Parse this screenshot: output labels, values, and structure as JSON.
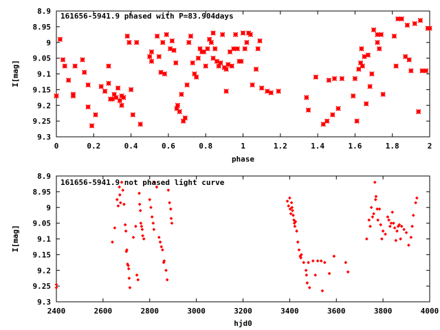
{
  "chart_data": [
    {
      "type": "scatter",
      "title": "161656-5941.9 phased with P=83.904days",
      "xlabel": "phase",
      "ylabel": "I[mag]",
      "xlim": [
        0,
        2
      ],
      "ylim": [
        9.3,
        8.9
      ],
      "y_inverted": true,
      "xticks": [
        "0",
        "0.2",
        "0.4",
        "0.6",
        "0.8",
        "1",
        "1.2",
        "1.4",
        "1.6",
        "1.8",
        "2"
      ],
      "yticks": [
        "8.9",
        "8.95",
        "9",
        "9.05",
        "9.1",
        "9.15",
        "9.2",
        "9.25",
        "9.3"
      ],
      "marker": "star",
      "color": "#ff0000",
      "grid": false,
      "legend": "none",
      "points": [
        [
          0.0,
          9.17
        ],
        [
          0.02,
          8.99
        ],
        [
          0.035,
          9.055
        ],
        [
          0.045,
          9.075
        ],
        [
          0.065,
          9.12
        ],
        [
          0.09,
          9.165
        ],
        [
          0.09,
          9.17
        ],
        [
          0.1,
          9.075
        ],
        [
          0.14,
          9.055
        ],
        [
          0.15,
          9.095
        ],
        [
          0.17,
          9.135
        ],
        [
          0.17,
          9.205
        ],
        [
          0.19,
          9.265
        ],
        [
          0.21,
          9.23
        ],
        [
          0.24,
          9.14
        ],
        [
          0.26,
          9.155
        ],
        [
          0.28,
          9.13
        ],
        [
          0.28,
          9.075
        ],
        [
          0.29,
          9.18
        ],
        [
          0.3,
          9.18
        ],
        [
          0.31,
          9.165
        ],
        [
          0.32,
          9.175
        ],
        [
          0.33,
          9.145
        ],
        [
          0.34,
          9.185
        ],
        [
          0.35,
          9.2
        ],
        [
          0.35,
          9.17
        ],
        [
          0.36,
          9.175
        ],
        [
          0.38,
          8.98
        ],
        [
          0.39,
          9.0
        ],
        [
          0.4,
          9.15
        ],
        [
          0.41,
          9.23
        ],
        [
          0.43,
          9.0
        ],
        [
          0.45,
          9.26
        ],
        [
          0.5,
          9.045
        ],
        [
          0.51,
          9.03
        ],
        [
          0.51,
          9.06
        ],
        [
          0.54,
          8.98
        ],
        [
          0.55,
          9.045
        ],
        [
          0.56,
          9.095
        ],
        [
          0.57,
          9.0
        ],
        [
          0.58,
          9.1
        ],
        [
          0.59,
          8.975
        ],
        [
          0.61,
          9.02
        ],
        [
          0.62,
          8.995
        ],
        [
          0.63,
          9.025
        ],
        [
          0.64,
          9.065
        ],
        [
          0.645,
          9.21
        ],
        [
          0.65,
          9.2
        ],
        [
          0.66,
          9.22
        ],
        [
          0.67,
          9.165
        ],
        [
          0.68,
          9.25
        ],
        [
          0.69,
          9.24
        ],
        [
          0.7,
          9.135
        ],
        [
          0.71,
          9.0
        ],
        [
          0.72,
          8.98
        ],
        [
          0.73,
          9.065
        ],
        [
          0.74,
          9.1
        ],
        [
          0.75,
          9.11
        ],
        [
          0.76,
          9.05
        ],
        [
          0.77,
          9.02
        ],
        [
          0.78,
          9.03
        ],
        [
          0.79,
          9.03
        ],
        [
          0.8,
          9.075
        ],
        [
          0.81,
          9.02
        ],
        [
          0.82,
          8.99
        ],
        [
          0.83,
          9.0
        ],
        [
          0.84,
          9.05
        ],
        [
          0.84,
          8.97
        ],
        [
          0.85,
          9.02
        ],
        [
          0.86,
          9.06
        ],
        [
          0.87,
          9.075
        ],
        [
          0.88,
          9.065
        ],
        [
          0.89,
          8.975
        ],
        [
          0.9,
          9.08
        ],
        [
          0.91,
          9.085
        ],
        [
          0.91,
          9.155
        ],
        [
          0.92,
          9.07
        ],
        [
          0.93,
          9.03
        ],
        [
          0.94,
          9.075
        ],
        [
          0.95,
          9.02
        ],
        [
          0.96,
          8.975
        ],
        [
          0.97,
          9.02
        ],
        [
          0.98,
          9.06
        ],
        [
          0.99,
          9.06
        ],
        [
          1.0,
          8.97
        ],
        [
          1.01,
          9.02
        ],
        [
          1.02,
          9.0
        ],
        [
          1.03,
          8.97
        ],
        [
          1.04,
          8.975
        ],
        [
          1.05,
          9.135
        ],
        [
          1.07,
          9.085
        ],
        [
          1.08,
          9.02
        ],
        [
          1.09,
          8.995
        ],
        [
          1.1,
          9.145
        ],
        [
          1.13,
          9.155
        ],
        [
          1.15,
          9.16
        ],
        [
          1.19,
          9.155
        ],
        [
          1.34,
          9.175
        ],
        [
          1.35,
          9.215
        ],
        [
          1.39,
          9.11
        ],
        [
          1.43,
          9.26
        ],
        [
          1.45,
          9.25
        ],
        [
          1.46,
          9.12
        ],
        [
          1.48,
          9.23
        ],
        [
          1.49,
          9.115
        ],
        [
          1.51,
          9.21
        ],
        [
          1.53,
          9.115
        ],
        [
          1.59,
          9.17
        ],
        [
          1.6,
          9.115
        ],
        [
          1.61,
          9.25
        ],
        [
          1.62,
          9.085
        ],
        [
          1.63,
          9.065
        ],
        [
          1.635,
          9.02
        ],
        [
          1.64,
          9.075
        ],
        [
          1.65,
          9.045
        ],
        [
          1.66,
          9.195
        ],
        [
          1.67,
          9.04
        ],
        [
          1.68,
          9.14
        ],
        [
          1.69,
          9.1
        ],
        [
          1.7,
          8.96
        ],
        [
          1.72,
          9.0
        ],
        [
          1.72,
          8.975
        ],
        [
          1.73,
          9.02
        ],
        [
          1.74,
          8.975
        ],
        [
          1.75,
          9.165
        ],
        [
          1.81,
          8.98
        ],
        [
          1.82,
          9.075
        ],
        [
          1.83,
          8.925
        ],
        [
          1.85,
          8.925
        ],
        [
          1.87,
          9.045
        ],
        [
          1.88,
          8.945
        ],
        [
          1.89,
          9.055
        ],
        [
          1.9,
          9.09
        ],
        [
          1.92,
          8.94
        ],
        [
          1.94,
          9.22
        ],
        [
          1.95,
          8.93
        ],
        [
          1.96,
          9.09
        ],
        [
          1.98,
          9.09
        ],
        [
          1.99,
          8.955
        ],
        [
          2.0,
          8.955
        ]
      ]
    },
    {
      "type": "scatter",
      "title": "161656-5941.9 not phased light curve",
      "xlabel": "hjd0",
      "ylabel": "I[mag]",
      "xlim": [
        2400,
        4000
      ],
      "ylim": [
        9.3,
        8.9
      ],
      "y_inverted": true,
      "xticks": [
        "2400",
        "2600",
        "2800",
        "3000",
        "3200",
        "3400",
        "3600",
        "3800",
        "4000"
      ],
      "yticks": [
        "8.9",
        "8.95",
        "9",
        "9.05",
        "9.1",
        "9.15",
        "9.2",
        "9.25",
        "9.3"
      ],
      "marker": "diamond",
      "color": "#ff0000",
      "grid": false,
      "legend": "none",
      "points": [
        [
          2400,
          9.245
        ],
        [
          2400,
          9.255
        ],
        [
          2640,
          9.11
        ],
        [
          2650,
          9.065
        ],
        [
          2660,
          8.975
        ],
        [
          2665,
          8.995
        ],
        [
          2670,
          8.935
        ],
        [
          2672,
          8.96
        ],
        [
          2675,
          8.985
        ],
        [
          2680,
          8.92
        ],
        [
          2685,
          8.945
        ],
        [
          2690,
          8.99
        ],
        [
          2695,
          9.055
        ],
        [
          2698,
          9.075
        ],
        [
          2700,
          9.14
        ],
        [
          2702,
          9.135
        ],
        [
          2705,
          9.18
        ],
        [
          2708,
          9.185
        ],
        [
          2710,
          9.195
        ],
        [
          2712,
          9.225
        ],
        [
          2715,
          9.255
        ],
        [
          2730,
          9.095
        ],
        [
          2740,
          9.06
        ],
        [
          2745,
          9.215
        ],
        [
          2750,
          9.23
        ],
        [
          2755,
          8.955
        ],
        [
          2757,
          8.99
        ],
        [
          2760,
          9.01
        ],
        [
          2762,
          9.05
        ],
        [
          2765,
          9.06
        ],
        [
          2768,
          9.07
        ],
        [
          2770,
          9.09
        ],
        [
          2775,
          9.1
        ],
        [
          2800,
          8.975
        ],
        [
          2805,
          9.0
        ],
        [
          2810,
          9.03
        ],
        [
          2815,
          9.05
        ],
        [
          2818,
          9.07
        ],
        [
          2820,
          8.92
        ],
        [
          2830,
          8.935
        ],
        [
          2840,
          9.095
        ],
        [
          2845,
          9.11
        ],
        [
          2850,
          9.125
        ],
        [
          2855,
          9.135
        ],
        [
          2860,
          9.175
        ],
        [
          2862,
          9.17
        ],
        [
          2870,
          9.2
        ],
        [
          2875,
          9.23
        ],
        [
          2880,
          8.945
        ],
        [
          2885,
          8.985
        ],
        [
          2890,
          9.005
        ],
        [
          2892,
          9.035
        ],
        [
          2895,
          9.05
        ],
        [
          3390,
          8.98
        ],
        [
          3395,
          8.995
        ],
        [
          3400,
          8.97
        ],
        [
          3402,
          9.005
        ],
        [
          3405,
          9.02
        ],
        [
          3408,
          8.985
        ],
        [
          3410,
          9.0
        ],
        [
          3412,
          9.01
        ],
        [
          3415,
          9.025
        ],
        [
          3418,
          9.04
        ],
        [
          3420,
          9.05
        ],
        [
          3422,
          9.06
        ],
        [
          3425,
          9.045
        ],
        [
          3430,
          9.075
        ],
        [
          3435,
          9.11
        ],
        [
          3440,
          9.135
        ],
        [
          3445,
          9.155
        ],
        [
          3448,
          9.16
        ],
        [
          3450,
          9.15
        ],
        [
          3460,
          9.175
        ],
        [
          3470,
          9.2
        ],
        [
          3472,
          9.215
        ],
        [
          3475,
          9.24
        ],
        [
          3480,
          9.175
        ],
        [
          3485,
          9.255
        ],
        [
          3500,
          9.17
        ],
        [
          3510,
          9.215
        ],
        [
          3520,
          9.17
        ],
        [
          3535,
          9.17
        ],
        [
          3540,
          9.265
        ],
        [
          3550,
          9.175
        ],
        [
          3570,
          9.21
        ],
        [
          3590,
          9.155
        ],
        [
          3640,
          9.175
        ],
        [
          3650,
          9.205
        ],
        [
          3730,
          9.1
        ],
        [
          3740,
          9.04
        ],
        [
          3745,
          9.06
        ],
        [
          3750,
          9.0
        ],
        [
          3755,
          9.03
        ],
        [
          3760,
          9.02
        ],
        [
          3765,
          8.92
        ],
        [
          3768,
          8.975
        ],
        [
          3770,
          8.965
        ],
        [
          3775,
          9.005
        ],
        [
          3778,
          9.04
        ],
        [
          3785,
          9.005
        ],
        [
          3790,
          9.055
        ],
        [
          3795,
          9.1
        ],
        [
          3800,
          9.075
        ],
        [
          3810,
          9.085
        ],
        [
          3820,
          9.03
        ],
        [
          3825,
          9.04
        ],
        [
          3830,
          9.06
        ],
        [
          3835,
          9.05
        ],
        [
          3840,
          9.015
        ],
        [
          3845,
          9.05
        ],
        [
          3850,
          9.065
        ],
        [
          3855,
          9.105
        ],
        [
          3860,
          9.075
        ],
        [
          3865,
          9.06
        ],
        [
          3870,
          9.055
        ],
        [
          3875,
          9.1
        ],
        [
          3880,
          9.06
        ],
        [
          3890,
          9.07
        ],
        [
          3900,
          9.08
        ],
        [
          3910,
          9.12
        ],
        [
          3920,
          9.095
        ],
        [
          3925,
          9.06
        ],
        [
          3930,
          9.025
        ],
        [
          3940,
          8.985
        ],
        [
          3945,
          8.97
        ]
      ]
    }
  ]
}
